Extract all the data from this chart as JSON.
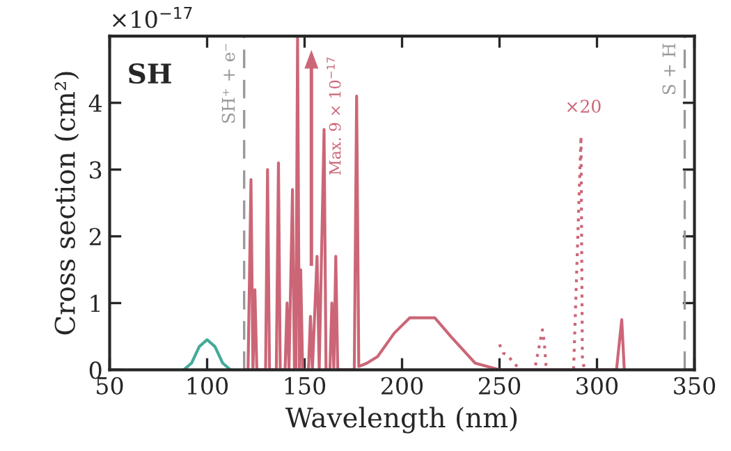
{
  "chart_data": {
    "type": "line",
    "xlabel": "Wavelength (nm)",
    "ylabel": "Cross section (cm²)",
    "xlim": [
      50,
      350
    ],
    "xticks": [
      50,
      100,
      150,
      200,
      250,
      300,
      350
    ],
    "ylim": [
      0,
      5
    ],
    "yticks": [
      0,
      1,
      2,
      3,
      4
    ],
    "grid": false,
    "legend": false,
    "marker": "none",
    "series": [
      {
        "color": "#44aa99",
        "line_style": "solid",
        "x": [
          88,
          92,
          96,
          100,
          104,
          108,
          112
        ],
        "values": [
          0,
          0.1,
          0.35,
          0.45,
          0.35,
          0.1,
          0
        ]
      },
      {
        "color": "#cc6677",
        "line_style": "solid",
        "x": [
          119,
          121,
          122.5,
          123.5,
          124.5,
          125.5,
          130,
          131,
          132,
          135.5,
          136.6,
          137.5,
          140,
          141,
          142,
          143.8,
          144.8,
          145.5,
          146.4,
          147.3,
          148,
          149,
          152,
          153,
          154,
          156.4,
          157.5,
          160,
          161,
          163,
          164,
          165,
          166,
          167,
          175.5,
          176.7,
          177.8,
          182,
          187.5,
          196,
          204,
          216.8,
          225,
          237.5,
          250,
          310,
          312.7,
          314
        ],
        "values": [
          0,
          0,
          2.85,
          0,
          1.2,
          0,
          0,
          3.0,
          0,
          0,
          3.1,
          0,
          0,
          1.0,
          0,
          2.7,
          0,
          0,
          5.0,
          0,
          1.5,
          0,
          0,
          0.8,
          0,
          1.7,
          0,
          3.6,
          0,
          0,
          1.0,
          0,
          1.7,
          0,
          0,
          4.1,
          0.05,
          0.1,
          0.2,
          0.55,
          0.78,
          0.78,
          0.5,
          0.1,
          0,
          0,
          0.75,
          0
        ]
      },
      {
        "color": "#cc6677",
        "line_style": "dotted",
        "x": [
          250,
          252,
          254,
          256,
          258,
          261,
          268,
          272,
          273,
          274,
          288,
          291.8,
          292.5,
          293.5
        ],
        "values": [
          0.38,
          0.25,
          0.22,
          0.15,
          0.08,
          0,
          0,
          0.6,
          0.4,
          0,
          0,
          3.5,
          0.2,
          0
        ]
      }
    ],
    "ref_lines": [
      {
        "axis": "x",
        "value": 119,
        "label": "SH⁺ + e⁻",
        "color": "#999999",
        "line_style": "dashed"
      },
      {
        "axis": "x",
        "value": 345,
        "label": "S + H",
        "color": "#999999",
        "line_style": "dashed"
      }
    ],
    "annotations": [
      "×10$^{−17}$",
      "SH",
      "Max. 9 × 10$^{−17}$",
      "×20"
    ]
  }
}
